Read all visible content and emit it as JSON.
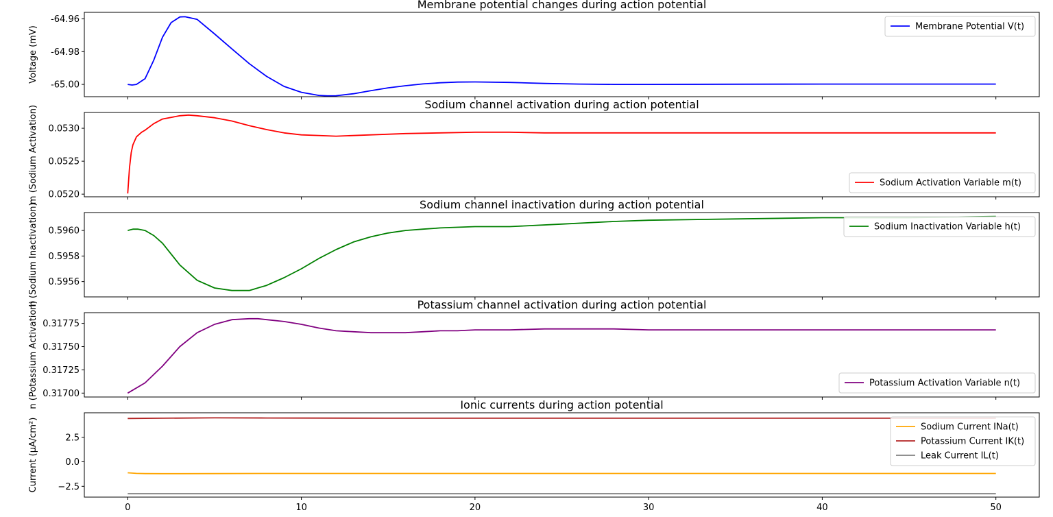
{
  "chart_data": [
    {
      "type": "line",
      "title": "Membrane potential changes during action potential",
      "xlabel": "",
      "ylabel": "Voltage (mV)",
      "xlim": [
        -2.5,
        52.5
      ],
      "ylim": [
        -65.0075,
        -64.956
      ],
      "yticks": [
        "-64.96",
        "-64.98",
        "-65.00"
      ],
      "ytick_values": [
        -64.96,
        -64.98,
        -65.0
      ],
      "legend_position": "upper-right",
      "series": [
        {
          "name": "Membrane Potential V(t)",
          "color": "#0000ff",
          "x": [
            0,
            0.25,
            0.5,
            1,
            1.5,
            2,
            2.5,
            3,
            3.3,
            4,
            5,
            6,
            7,
            8,
            9,
            10,
            11,
            11.5,
            12,
            13,
            14,
            15,
            16,
            17,
            18,
            19,
            20,
            22,
            24,
            26,
            28,
            30,
            35,
            40,
            45,
            50
          ],
          "y": [
            -65.0,
            -65.0004,
            -65.0,
            -64.9965,
            -64.9852,
            -64.9712,
            -64.9623,
            -64.9588,
            -64.9587,
            -64.9603,
            -64.9692,
            -64.9783,
            -64.9873,
            -64.9951,
            -65.0012,
            -65.0048,
            -65.0067,
            -65.007,
            -65.0069,
            -65.0057,
            -65.0038,
            -65.0021,
            -65.0008,
            -64.9997,
            -64.999,
            -64.9986,
            -64.9985,
            -64.9988,
            -64.9994,
            -64.9998,
            -65.0,
            -65.0,
            -64.9999,
            -64.9998,
            -64.9998,
            -64.9998
          ]
        }
      ]
    },
    {
      "type": "line",
      "title": "Sodium channel activation during action potential",
      "xlabel": "",
      "ylabel": "m (Sodium Activation)",
      "xlim": [
        -2.5,
        52.5
      ],
      "ylim": [
        0.05196,
        0.05324
      ],
      "yticks": [
        "0.0530",
        "0.0525",
        "0.0520"
      ],
      "ytick_values": [
        0.053,
        0.0525,
        0.052
      ],
      "legend_position": "lower-right",
      "series": [
        {
          "name": "Sodium Activation Variable m(t)",
          "color": "#ff0000",
          "x": [
            0,
            0.1,
            0.2,
            0.3,
            0.5,
            0.8,
            1,
            1.5,
            2,
            3,
            3.5,
            4,
            5,
            6,
            7,
            8,
            9,
            10,
            11,
            12,
            14,
            16,
            18,
            20,
            22,
            24,
            26,
            28,
            30,
            35,
            40,
            45,
            50
          ],
          "y": [
            0.05201,
            0.0524,
            0.05263,
            0.05275,
            0.05287,
            0.05294,
            0.05297,
            0.05307,
            0.05314,
            0.05319,
            0.0532,
            0.05319,
            0.05316,
            0.05311,
            0.05304,
            0.05298,
            0.05293,
            0.0529,
            0.05289,
            0.05288,
            0.0529,
            0.05292,
            0.05293,
            0.05294,
            0.05294,
            0.05293,
            0.05293,
            0.05293,
            0.05293,
            0.05293,
            0.05293,
            0.05293,
            0.05293
          ]
        }
      ]
    },
    {
      "type": "line",
      "title": "Sodium channel inactivation during action potential",
      "xlabel": "",
      "ylabel": "h (Sodium Inactivation)",
      "xlim": [
        -2.5,
        52.5
      ],
      "ylim": [
        0.59548,
        0.59614
      ],
      "yticks": [
        "0.5960",
        "0.5958",
        "0.5956"
      ],
      "ytick_values": [
        0.596,
        0.5958,
        0.5956
      ],
      "legend_position": "upper-right",
      "series": [
        {
          "name": "Sodium Inactivation Variable h(t)",
          "color": "#008000",
          "x": [
            0,
            0.3,
            0.6,
            1,
            1.5,
            2,
            3,
            4,
            5,
            6,
            6.5,
            7,
            8,
            9,
            10,
            11,
            12,
            13,
            14,
            15,
            16,
            17,
            18,
            20,
            22,
            25,
            28,
            30,
            35,
            40,
            45,
            50
          ],
          "y": [
            0.596,
            0.59601,
            0.59601,
            0.596,
            0.59596,
            0.5959,
            0.59573,
            0.59561,
            0.59555,
            0.59553,
            0.59553,
            0.59553,
            0.59557,
            0.59563,
            0.5957,
            0.59578,
            0.59585,
            0.59591,
            0.59595,
            0.59598,
            0.596,
            0.59601,
            0.59602,
            0.59603,
            0.59603,
            0.59605,
            0.59607,
            0.59608,
            0.59609,
            0.5961,
            0.5961,
            0.59611
          ]
        }
      ]
    },
    {
      "type": "line",
      "title": "Potassium channel activation during action potential",
      "xlabel": "",
      "ylabel": "n (Potassium Activation)",
      "xlim": [
        -2.5,
        52.5
      ],
      "ylim": [
        0.316958,
        0.317865
      ],
      "yticks": [
        "0.31775",
        "0.31750",
        "0.31725",
        "0.31700"
      ],
      "ytick_values": [
        0.31775,
        0.3175,
        0.31725,
        0.317
      ],
      "legend_position": "lower-right",
      "series": [
        {
          "name": "Potassium Activation Variable n(t)",
          "color": "#800080",
          "x": [
            0,
            1,
            2,
            3,
            4,
            5,
            6,
            7,
            7.5,
            8,
            9,
            10,
            11,
            12,
            13,
            14,
            15,
            16,
            17,
            18,
            19,
            20,
            22,
            24,
            26,
            28,
            30,
            35,
            40,
            45,
            50
          ],
          "y": [
            0.317,
            0.31711,
            0.31729,
            0.3175,
            0.31765,
            0.31774,
            0.31779,
            0.3178,
            0.3178,
            0.31779,
            0.31777,
            0.31774,
            0.3177,
            0.31767,
            0.31766,
            0.31765,
            0.31765,
            0.31765,
            0.31766,
            0.31767,
            0.31767,
            0.31768,
            0.31768,
            0.31769,
            0.31769,
            0.31769,
            0.31768,
            0.31768,
            0.31768,
            0.31768,
            0.31768
          ]
        }
      ]
    },
    {
      "type": "line",
      "title": "Ionic currents during action potential",
      "xlabel": "",
      "ylabel": "Current (μA/cm²)",
      "xlim": [
        -2.5,
        52.5
      ],
      "ylim": [
        -3.6,
        5.0
      ],
      "yticks": [
        "2.5",
        "0.0",
        "−2.5"
      ],
      "ytick_values": [
        2.5,
        0.0,
        -2.5
      ],
      "xticks": [
        "0",
        "10",
        "20",
        "30",
        "40",
        "50"
      ],
      "xtick_values": [
        0,
        10,
        20,
        30,
        40,
        50
      ],
      "legend_position": "upper-right",
      "series": [
        {
          "name": "Sodium Current INa(t)",
          "color": "#ffa500",
          "x": [
            0,
            0.5,
            1,
            2,
            3,
            5,
            8,
            10,
            15,
            20,
            30,
            40,
            50
          ],
          "y": [
            -1.12,
            -1.18,
            -1.2,
            -1.21,
            -1.21,
            -1.2,
            -1.19,
            -1.19,
            -1.19,
            -1.19,
            -1.19,
            -1.19,
            -1.19
          ]
        },
        {
          "name": "Potassium Current IK(t)",
          "color": "#b22222",
          "x": [
            0,
            2,
            5,
            8,
            10,
            15,
            20,
            30,
            40,
            50
          ],
          "y": [
            4.42,
            4.45,
            4.48,
            4.47,
            4.46,
            4.45,
            4.45,
            4.45,
            4.45,
            4.45
          ]
        },
        {
          "name": "Leak Current IL(t)",
          "color": "#808080",
          "x": [
            0,
            10,
            20,
            30,
            40,
            50
          ],
          "y": [
            -3.25,
            -3.25,
            -3.25,
            -3.25,
            -3.25,
            -3.25
          ]
        }
      ]
    }
  ]
}
